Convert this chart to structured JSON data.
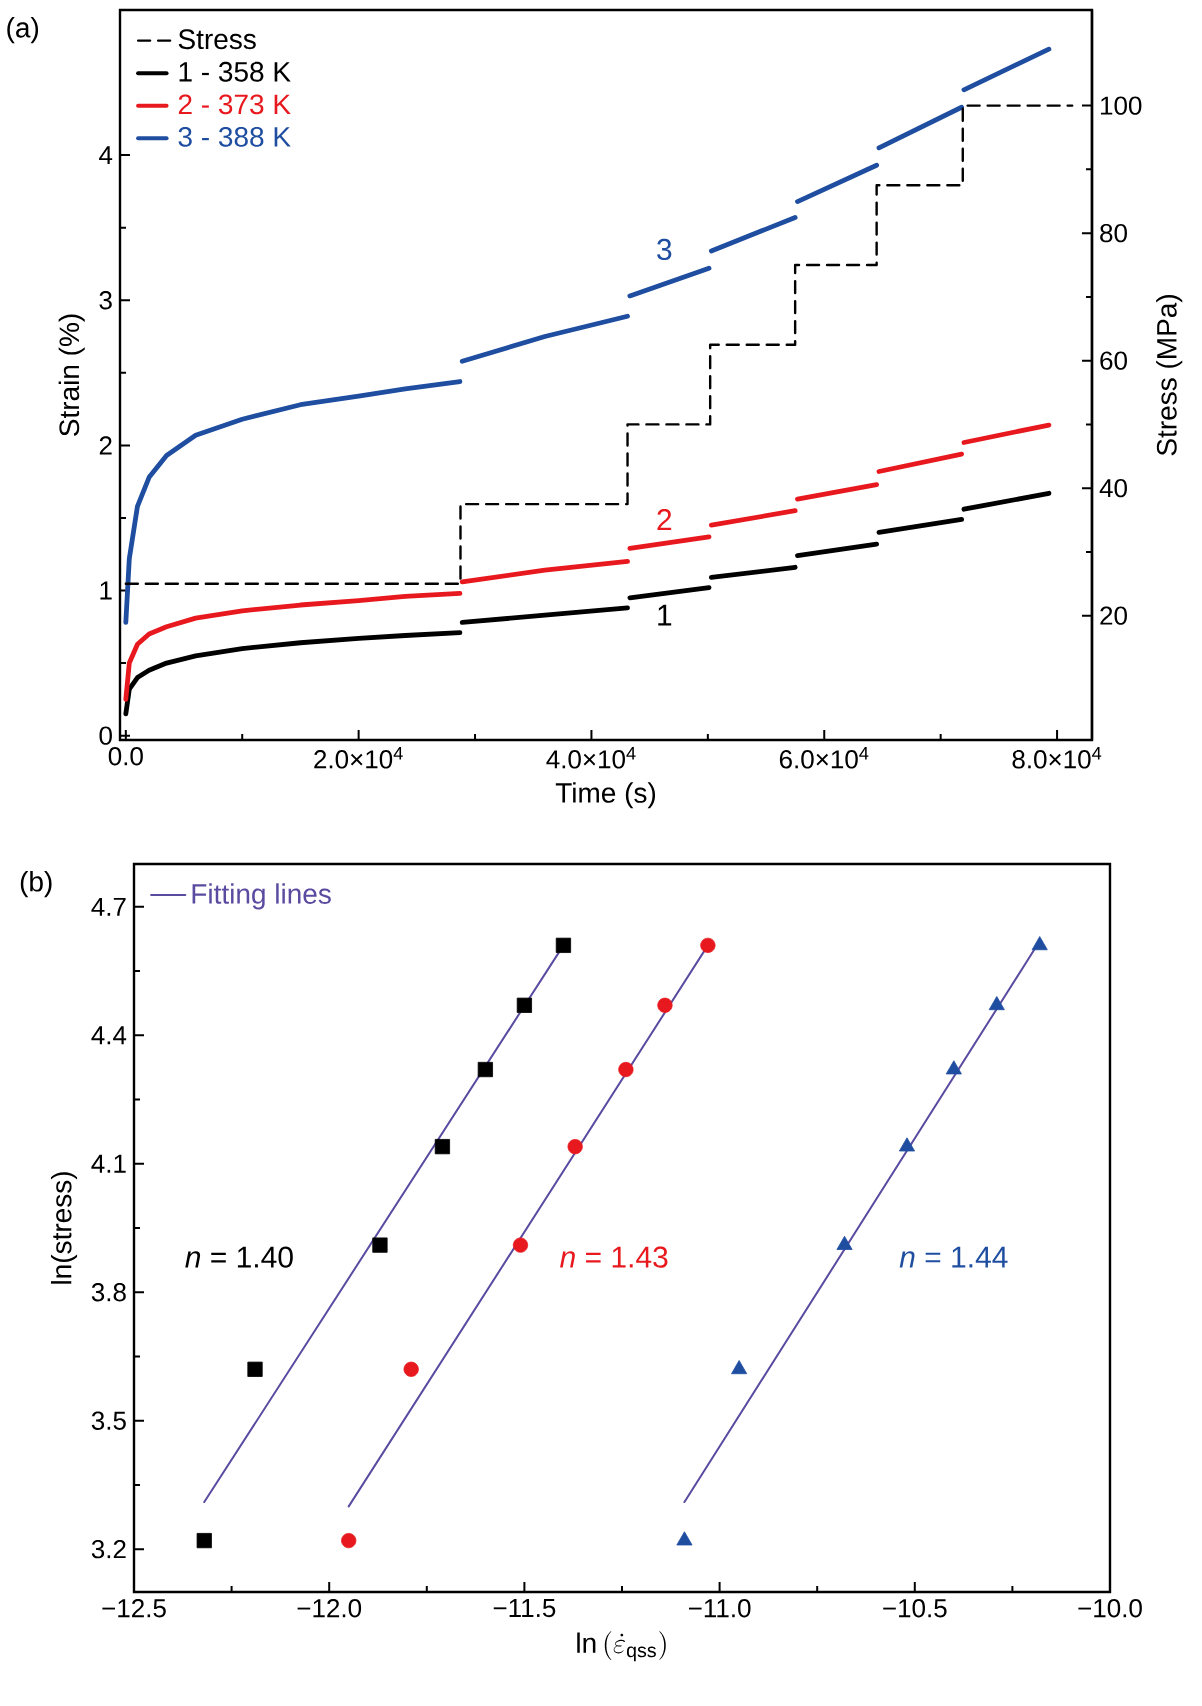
{
  "chart_data": [
    {
      "type": "line",
      "xlabel": "Time (s)",
      "ylabel": "Strain (%)",
      "y2label": "Stress (MPa)",
      "annotations": [
        "(a)",
        "1",
        "2",
        "3"
      ],
      "xlim": [
        -500,
        83000
      ],
      "ylim": [
        -0.03,
        5.0
      ],
      "y2lim": [
        0.5,
        115
      ],
      "xticks": [
        {
          "value": 0,
          "label": "0.0"
        },
        {
          "value": 20000,
          "label": "2.0×10$^{4}$"
        },
        {
          "value": 40000,
          "label": "4.0×10$^{4}$"
        },
        {
          "value": 60000,
          "label": "6.0×10$^{4}$"
        },
        {
          "value": 80000,
          "label": "8.0×10$^{4}$"
        }
      ],
      "yticks": [
        0,
        1,
        2,
        3,
        4
      ],
      "y2ticks": [
        20,
        40,
        60,
        80,
        100
      ],
      "legend": "top left",
      "x": [
        0,
        300,
        1000,
        2000,
        3500,
        6000,
        10000,
        15000,
        20000,
        24000,
        28700,
        28800,
        28900,
        36000,
        43100,
        43200,
        43300,
        50100,
        50200,
        50300,
        57500,
        57600,
        57700,
        64500,
        64600,
        64700,
        71800,
        71900,
        72000,
        79300
      ],
      "series": [
        {
          "name": "Stress",
          "type": "step",
          "axis": "y2",
          "line_style": "dashed",
          "color": "#000000",
          "x": [
            0,
            28750,
            43100,
            50200,
            57500,
            64500,
            71900,
            81300
          ],
          "values": [
            25,
            37.5,
            50,
            62.5,
            75,
            87.5,
            100,
            100
          ]
        },
        {
          "name": "1 - 358 K",
          "color": "#000000",
          "values": [
            0.15,
            0.32,
            0.4,
            0.45,
            0.5,
            0.55,
            0.6,
            0.64,
            0.67,
            0.69,
            0.71,
            null,
            0.78,
            0.83,
            0.88,
            null,
            0.95,
            1.02,
            null,
            1.09,
            1.16,
            null,
            1.24,
            1.32,
            null,
            1.4,
            1.49,
            null,
            1.56,
            1.67
          ]
        },
        {
          "name": "2 - 373 K",
          "color": "#e8191e",
          "values": [
            0.25,
            0.5,
            0.63,
            0.7,
            0.75,
            0.81,
            0.86,
            0.9,
            0.93,
            0.96,
            0.98,
            null,
            1.06,
            1.14,
            1.2,
            null,
            1.29,
            1.37,
            null,
            1.45,
            1.55,
            null,
            1.63,
            1.73,
            null,
            1.82,
            1.94,
            null,
            2.02,
            2.14
          ]
        },
        {
          "name": "3 - 388 K",
          "color": "#1f4ea1",
          "values": [
            0.78,
            1.22,
            1.58,
            1.78,
            1.93,
            2.07,
            2.18,
            2.28,
            2.34,
            2.39,
            2.44,
            null,
            2.58,
            2.75,
            2.89,
            null,
            3.03,
            3.22,
            null,
            3.34,
            3.57,
            null,
            3.68,
            3.93,
            null,
            4.05,
            4.33,
            null,
            4.45,
            4.73
          ]
        }
      ]
    },
    {
      "type": "scatter",
      "xlabel": "\\mathrm{ln}\\,(\\dot{\\varepsilon}_{\\mathrm{qss}})",
      "ylabel": "ln(stress)",
      "annotations": [
        "(b)",
        "*n* = 1.40",
        "*n* = 1.43",
        "*n* = 1.44"
      ],
      "xlim": [
        -12.5,
        -10.0
      ],
      "ylim": [
        3.1,
        4.8
      ],
      "xticks": [
        {
          "value": -12.5,
          "label": "−12.5"
        },
        {
          "value": -12.0,
          "label": "−12.0"
        },
        {
          "value": -11.5,
          "label": "−11.5"
        },
        {
          "value": -11.0,
          "label": "−11.0"
        },
        {
          "value": -10.5,
          "label": "−10.5"
        },
        {
          "value": -10.0,
          "label": "−10.0"
        }
      ],
      "yticks": [
        3.2,
        3.5,
        3.8,
        4.1,
        4.4,
        4.7
      ],
      "legend": "top left",
      "series": [
        {
          "color": "#000000",
          "marker": "square",
          "x": [
            -12.32,
            -12.19,
            -11.87,
            -11.71,
            -11.6,
            -11.5,
            -11.4
          ],
          "values": [
            3.22,
            3.62,
            3.91,
            4.14,
            4.32,
            4.47,
            4.61
          ]
        },
        {
          "color": "#e8191e",
          "marker": "circle",
          "x": [
            -11.95,
            -11.79,
            -11.51,
            -11.37,
            -11.24,
            -11.14,
            -11.03
          ],
          "values": [
            3.22,
            3.62,
            3.91,
            4.14,
            4.32,
            4.47,
            4.61
          ]
        },
        {
          "color": "#1f4ea1",
          "marker": "triangle",
          "x": [
            -11.09,
            -10.95,
            -10.68,
            -10.52,
            -10.4,
            -10.29,
            -10.18
          ],
          "values": [
            3.22,
            3.62,
            3.91,
            4.14,
            4.32,
            4.47,
            4.61
          ]
        },
        {
          "name": "Fitting lines",
          "type": "line",
          "color": "#5a4aa0",
          "x": [
            -12.32,
            -11.4
          ],
          "values": [
            3.31,
            4.61
          ]
        },
        {
          "type": "line",
          "color": "#5a4aa0",
          "x": [
            -11.95,
            -11.03
          ],
          "values": [
            3.3,
            4.61
          ]
        },
        {
          "type": "line",
          "color": "#5a4aa0",
          "x": [
            -11.09,
            -10.18
          ],
          "values": [
            3.31,
            4.62
          ]
        }
      ]
    }
  ]
}
